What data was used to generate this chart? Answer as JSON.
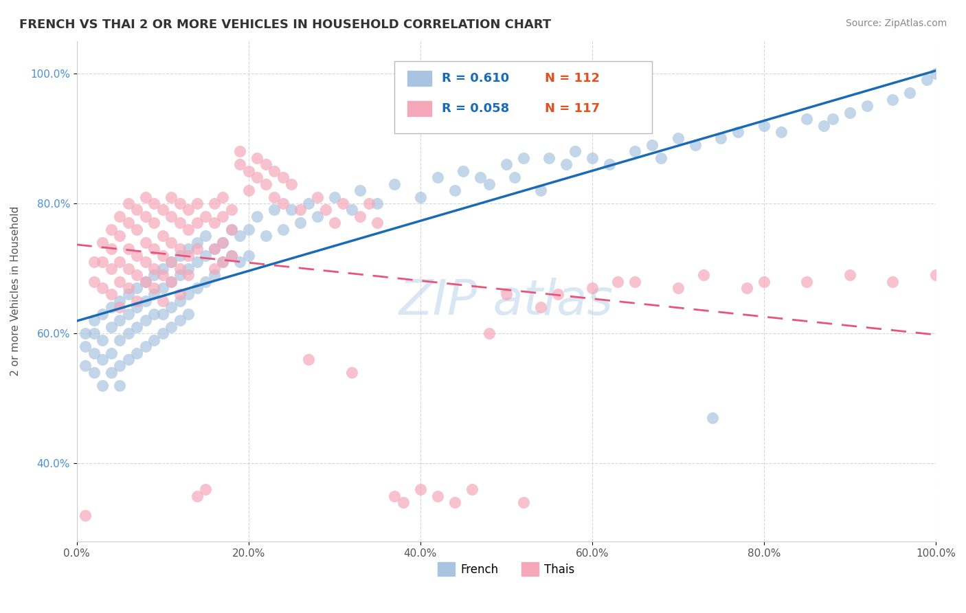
{
  "title": "FRENCH VS THAI 2 OR MORE VEHICLES IN HOUSEHOLD CORRELATION CHART",
  "source_text": "Source: ZipAtlas.com",
  "ylabel": "2 or more Vehicles in Household",
  "xlim": [
    0.0,
    1.0
  ],
  "ylim": [
    0.28,
    1.05
  ],
  "x_ticks": [
    0.0,
    0.2,
    0.4,
    0.6,
    0.8,
    1.0
  ],
  "x_tick_labels": [
    "0.0%",
    "20.0%",
    "40.0%",
    "60.0%",
    "80.0%",
    "100.0%"
  ],
  "y_ticks": [
    0.4,
    0.6,
    0.8,
    1.0
  ],
  "y_tick_labels": [
    "40.0%",
    "60.0%",
    "80.0%",
    "100.0%"
  ],
  "french_R": 0.61,
  "french_N": 112,
  "thai_R": 0.058,
  "thai_N": 117,
  "french_color": "#a8c4e0",
  "thai_color": "#f4a7b9",
  "french_line_color": "#1a6bb5",
  "thai_line_color": "#e8547a",
  "legend_french_label": "French",
  "legend_thai_label": "Thais",
  "french_scatter": [
    [
      0.01,
      0.58
    ],
    [
      0.01,
      0.6
    ],
    [
      0.01,
      0.55
    ],
    [
      0.02,
      0.6
    ],
    [
      0.02,
      0.57
    ],
    [
      0.02,
      0.62
    ],
    [
      0.02,
      0.54
    ],
    [
      0.03,
      0.63
    ],
    [
      0.03,
      0.59
    ],
    [
      0.03,
      0.56
    ],
    [
      0.03,
      0.52
    ],
    [
      0.04,
      0.64
    ],
    [
      0.04,
      0.61
    ],
    [
      0.04,
      0.57
    ],
    [
      0.04,
      0.54
    ],
    [
      0.05,
      0.65
    ],
    [
      0.05,
      0.62
    ],
    [
      0.05,
      0.59
    ],
    [
      0.05,
      0.55
    ],
    [
      0.05,
      0.52
    ],
    [
      0.06,
      0.66
    ],
    [
      0.06,
      0.63
    ],
    [
      0.06,
      0.6
    ],
    [
      0.06,
      0.56
    ],
    [
      0.07,
      0.67
    ],
    [
      0.07,
      0.64
    ],
    [
      0.07,
      0.61
    ],
    [
      0.07,
      0.57
    ],
    [
      0.08,
      0.68
    ],
    [
      0.08,
      0.65
    ],
    [
      0.08,
      0.62
    ],
    [
      0.08,
      0.58
    ],
    [
      0.09,
      0.69
    ],
    [
      0.09,
      0.66
    ],
    [
      0.09,
      0.63
    ],
    [
      0.09,
      0.59
    ],
    [
      0.1,
      0.7
    ],
    [
      0.1,
      0.67
    ],
    [
      0.1,
      0.63
    ],
    [
      0.1,
      0.6
    ],
    [
      0.11,
      0.71
    ],
    [
      0.11,
      0.68
    ],
    [
      0.11,
      0.64
    ],
    [
      0.11,
      0.61
    ],
    [
      0.12,
      0.72
    ],
    [
      0.12,
      0.69
    ],
    [
      0.12,
      0.65
    ],
    [
      0.12,
      0.62
    ],
    [
      0.13,
      0.73
    ],
    [
      0.13,
      0.7
    ],
    [
      0.13,
      0.66
    ],
    [
      0.13,
      0.63
    ],
    [
      0.14,
      0.74
    ],
    [
      0.14,
      0.71
    ],
    [
      0.14,
      0.67
    ],
    [
      0.15,
      0.75
    ],
    [
      0.15,
      0.72
    ],
    [
      0.15,
      0.68
    ],
    [
      0.16,
      0.73
    ],
    [
      0.16,
      0.69
    ],
    [
      0.17,
      0.74
    ],
    [
      0.17,
      0.71
    ],
    [
      0.18,
      0.76
    ],
    [
      0.18,
      0.72
    ],
    [
      0.19,
      0.75
    ],
    [
      0.19,
      0.71
    ],
    [
      0.2,
      0.76
    ],
    [
      0.2,
      0.72
    ],
    [
      0.21,
      0.78
    ],
    [
      0.22,
      0.75
    ],
    [
      0.23,
      0.79
    ],
    [
      0.24,
      0.76
    ],
    [
      0.25,
      0.79
    ],
    [
      0.26,
      0.77
    ],
    [
      0.27,
      0.8
    ],
    [
      0.28,
      0.78
    ],
    [
      0.3,
      0.81
    ],
    [
      0.32,
      0.79
    ],
    [
      0.33,
      0.82
    ],
    [
      0.35,
      0.8
    ],
    [
      0.37,
      0.83
    ],
    [
      0.4,
      0.81
    ],
    [
      0.42,
      0.84
    ],
    [
      0.44,
      0.82
    ],
    [
      0.45,
      0.85
    ],
    [
      0.47,
      0.84
    ],
    [
      0.48,
      0.83
    ],
    [
      0.5,
      0.86
    ],
    [
      0.51,
      0.84
    ],
    [
      0.52,
      0.87
    ],
    [
      0.54,
      0.82
    ],
    [
      0.55,
      0.87
    ],
    [
      0.57,
      0.86
    ],
    [
      0.58,
      0.88
    ],
    [
      0.6,
      0.87
    ],
    [
      0.62,
      0.86
    ],
    [
      0.65,
      0.88
    ],
    [
      0.67,
      0.89
    ],
    [
      0.68,
      0.87
    ],
    [
      0.7,
      0.9
    ],
    [
      0.72,
      0.89
    ],
    [
      0.74,
      0.47
    ],
    [
      0.75,
      0.9
    ],
    [
      0.77,
      0.91
    ],
    [
      0.8,
      0.92
    ],
    [
      0.82,
      0.91
    ],
    [
      0.85,
      0.93
    ],
    [
      0.87,
      0.92
    ],
    [
      0.88,
      0.93
    ],
    [
      0.9,
      0.94
    ],
    [
      0.92,
      0.95
    ],
    [
      0.95,
      0.96
    ],
    [
      0.97,
      0.97
    ],
    [
      0.99,
      0.99
    ],
    [
      1.0,
      1.0
    ]
  ],
  "thai_scatter": [
    [
      0.01,
      0.32
    ],
    [
      0.02,
      0.71
    ],
    [
      0.02,
      0.68
    ],
    [
      0.03,
      0.74
    ],
    [
      0.03,
      0.71
    ],
    [
      0.03,
      0.67
    ],
    [
      0.04,
      0.76
    ],
    [
      0.04,
      0.73
    ],
    [
      0.04,
      0.7
    ],
    [
      0.04,
      0.66
    ],
    [
      0.05,
      0.78
    ],
    [
      0.05,
      0.75
    ],
    [
      0.05,
      0.71
    ],
    [
      0.05,
      0.68
    ],
    [
      0.05,
      0.64
    ],
    [
      0.06,
      0.8
    ],
    [
      0.06,
      0.77
    ],
    [
      0.06,
      0.73
    ],
    [
      0.06,
      0.7
    ],
    [
      0.06,
      0.67
    ],
    [
      0.07,
      0.79
    ],
    [
      0.07,
      0.76
    ],
    [
      0.07,
      0.72
    ],
    [
      0.07,
      0.69
    ],
    [
      0.07,
      0.65
    ],
    [
      0.08,
      0.81
    ],
    [
      0.08,
      0.78
    ],
    [
      0.08,
      0.74
    ],
    [
      0.08,
      0.71
    ],
    [
      0.08,
      0.68
    ],
    [
      0.09,
      0.8
    ],
    [
      0.09,
      0.77
    ],
    [
      0.09,
      0.73
    ],
    [
      0.09,
      0.7
    ],
    [
      0.09,
      0.67
    ],
    [
      0.1,
      0.79
    ],
    [
      0.1,
      0.75
    ],
    [
      0.1,
      0.72
    ],
    [
      0.1,
      0.69
    ],
    [
      0.1,
      0.65
    ],
    [
      0.11,
      0.81
    ],
    [
      0.11,
      0.78
    ],
    [
      0.11,
      0.74
    ],
    [
      0.11,
      0.71
    ],
    [
      0.11,
      0.68
    ],
    [
      0.12,
      0.8
    ],
    [
      0.12,
      0.77
    ],
    [
      0.12,
      0.73
    ],
    [
      0.12,
      0.7
    ],
    [
      0.12,
      0.66
    ],
    [
      0.13,
      0.79
    ],
    [
      0.13,
      0.76
    ],
    [
      0.13,
      0.72
    ],
    [
      0.13,
      0.69
    ],
    [
      0.14,
      0.8
    ],
    [
      0.14,
      0.77
    ],
    [
      0.14,
      0.73
    ],
    [
      0.14,
      0.35
    ],
    [
      0.15,
      0.78
    ],
    [
      0.15,
      0.36
    ],
    [
      0.16,
      0.8
    ],
    [
      0.16,
      0.77
    ],
    [
      0.16,
      0.73
    ],
    [
      0.16,
      0.7
    ],
    [
      0.17,
      0.81
    ],
    [
      0.17,
      0.78
    ],
    [
      0.17,
      0.74
    ],
    [
      0.17,
      0.71
    ],
    [
      0.18,
      0.79
    ],
    [
      0.18,
      0.76
    ],
    [
      0.18,
      0.72
    ],
    [
      0.19,
      0.88
    ],
    [
      0.19,
      0.86
    ],
    [
      0.2,
      0.85
    ],
    [
      0.2,
      0.82
    ],
    [
      0.21,
      0.87
    ],
    [
      0.21,
      0.84
    ],
    [
      0.22,
      0.86
    ],
    [
      0.22,
      0.83
    ],
    [
      0.23,
      0.85
    ],
    [
      0.23,
      0.81
    ],
    [
      0.24,
      0.84
    ],
    [
      0.24,
      0.8
    ],
    [
      0.25,
      0.83
    ],
    [
      0.26,
      0.79
    ],
    [
      0.27,
      0.56
    ],
    [
      0.28,
      0.81
    ],
    [
      0.29,
      0.79
    ],
    [
      0.3,
      0.77
    ],
    [
      0.31,
      0.8
    ],
    [
      0.32,
      0.54
    ],
    [
      0.33,
      0.78
    ],
    [
      0.34,
      0.8
    ],
    [
      0.35,
      0.77
    ],
    [
      0.37,
      0.35
    ],
    [
      0.38,
      0.34
    ],
    [
      0.4,
      0.36
    ],
    [
      0.42,
      0.35
    ],
    [
      0.44,
      0.34
    ],
    [
      0.46,
      0.36
    ],
    [
      0.48,
      0.6
    ],
    [
      0.5,
      0.66
    ],
    [
      0.52,
      0.34
    ],
    [
      0.54,
      0.64
    ],
    [
      0.56,
      0.66
    ],
    [
      0.6,
      0.67
    ],
    [
      0.63,
      0.68
    ],
    [
      0.65,
      0.68
    ],
    [
      0.7,
      0.67
    ],
    [
      0.73,
      0.69
    ],
    [
      0.78,
      0.67
    ],
    [
      0.8,
      0.68
    ],
    [
      0.85,
      0.68
    ],
    [
      0.9,
      0.69
    ],
    [
      0.95,
      0.68
    ],
    [
      1.0,
      0.69
    ]
  ]
}
